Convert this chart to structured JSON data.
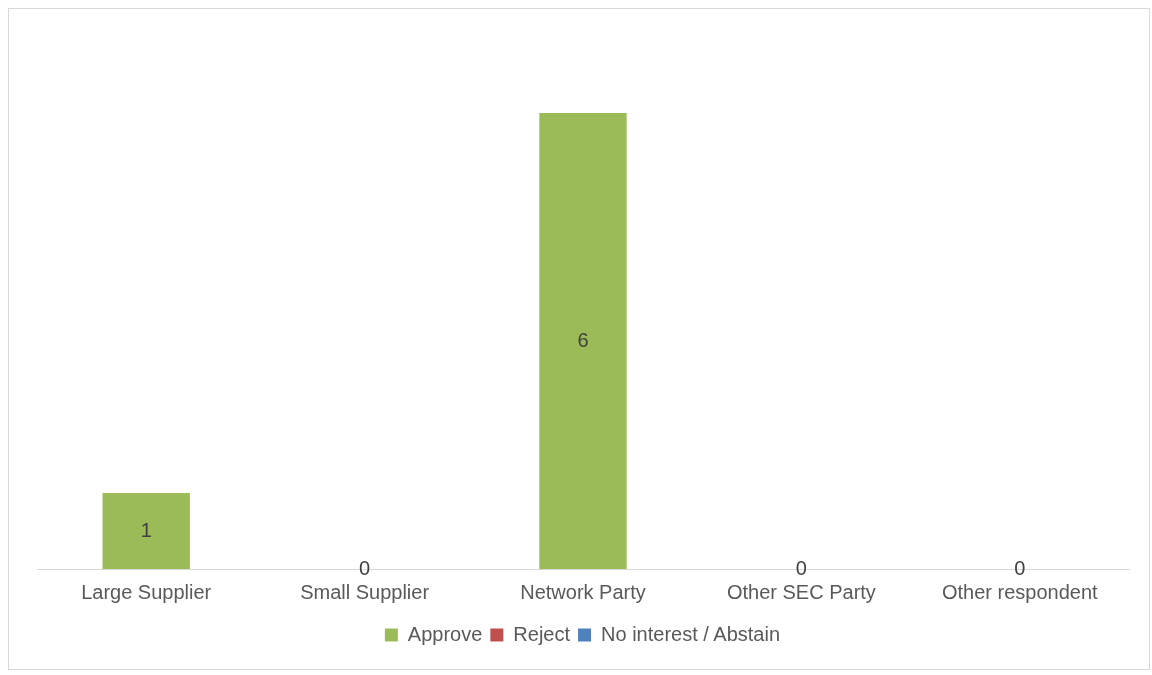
{
  "chart_data": {
    "type": "bar",
    "stacked": true,
    "categories": [
      "Large Supplier",
      "Small Supplier",
      "Network Party",
      "Other SEC Party",
      "Other respondent"
    ],
    "series": [
      {
        "name": "Approve",
        "color": "#9bbb59",
        "values": [
          1,
          0,
          6,
          0,
          0
        ],
        "value_labels": [
          "1",
          "0",
          "6",
          "0",
          "0"
        ]
      },
      {
        "name": "Reject",
        "color": "#c0504d",
        "values": [
          0,
          0,
          0,
          0,
          0
        ]
      },
      {
        "name": "No interest / Abstain",
        "color": "#4f81bd",
        "values": [
          0,
          0,
          0,
          0,
          0
        ]
      }
    ],
    "legend": "bottom",
    "grid": false,
    "tick_labels": "x"
  }
}
